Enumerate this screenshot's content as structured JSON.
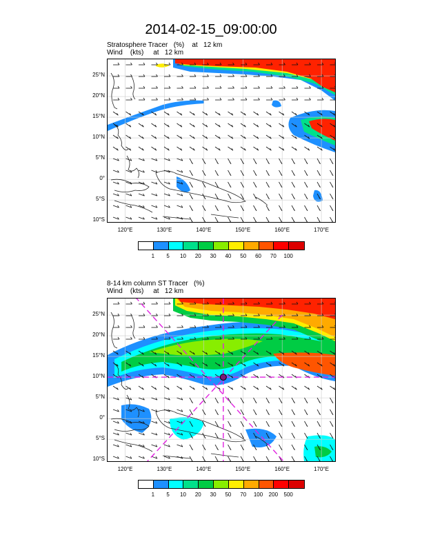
{
  "title": "2014-02-15_09:00:00",
  "panel1": {
    "line1": "Stratosphere Tracer   (%)    at   12 km",
    "line2": "Wind    (kts)     at   12 km",
    "legend_labels": [
      "1",
      "5",
      "10",
      "20",
      "30",
      "40",
      "50",
      "60",
      "70",
      "100"
    ],
    "legend_colors": [
      "#ffffff",
      "#1e90ff",
      "#00ffff",
      "#00e08a",
      "#00cc44",
      "#88ee00",
      "#ffee00",
      "#ffaa00",
      "#ff5500",
      "#ff0000",
      "#dd0000"
    ]
  },
  "panel2": {
    "line1": "8-14 km column ST Tracer   (%)",
    "line2": "Wind    (kts)     at   12 km",
    "legend_labels": [
      "1",
      "5",
      "10",
      "20",
      "30",
      "50",
      "70",
      "100",
      "200",
      "500"
    ],
    "legend_colors": [
      "#ffffff",
      "#1e90ff",
      "#00ffff",
      "#00e08a",
      "#00cc44",
      "#88ee00",
      "#ffee00",
      "#ffaa00",
      "#ff5500",
      "#ff0000",
      "#dd0000"
    ]
  },
  "axes": {
    "x_labels": [
      "120°E",
      "130°E",
      "140°E",
      "150°E",
      "160°E",
      "170°E"
    ],
    "y_labels": [
      "25°N",
      "20°N",
      "15°N",
      "10°N",
      "5°N",
      "0°",
      "5°S",
      "10°S"
    ]
  }
}
